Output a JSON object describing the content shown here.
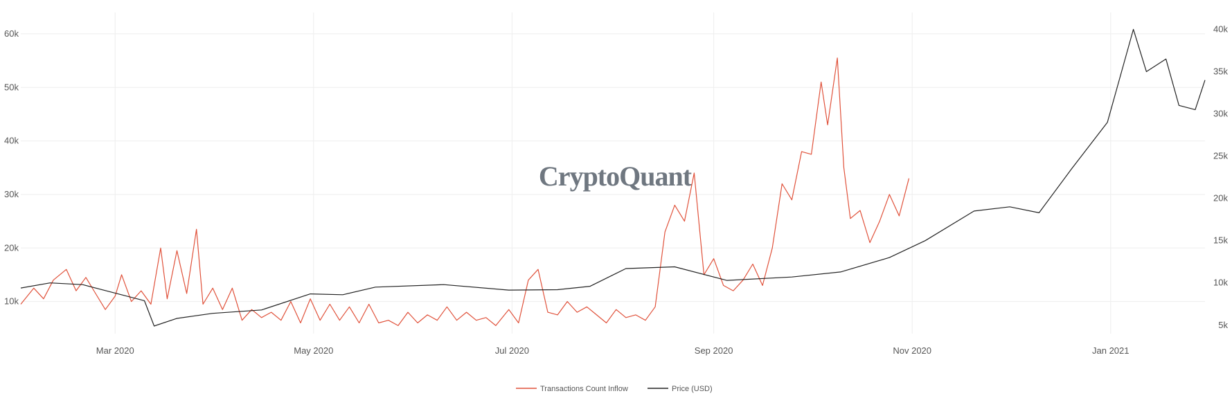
{
  "watermark": "CryptoQuant",
  "chart_data": {
    "type": "line",
    "x_ticks": [
      "Mar 2020",
      "May 2020",
      "Jul 2020",
      "Sep 2020",
      "Nov 2020",
      "Jan 2021"
    ],
    "x_tick_dates": [
      "2020-03-01",
      "2020-05-01",
      "2020-07-01",
      "2020-09-01",
      "2020-11-01",
      "2021-01-01"
    ],
    "x_range": [
      "2020-02-01",
      "2021-01-30"
    ],
    "y_left": {
      "ticks": [
        "10k",
        "20k",
        "30k",
        "40k",
        "50k",
        "60k"
      ],
      "tick_values": [
        10000,
        20000,
        30000,
        40000,
        50000,
        60000
      ],
      "range": [
        4000,
        64000
      ]
    },
    "y_right": {
      "ticks": [
        "5k",
        "10k",
        "15k",
        "20k",
        "25k",
        "30k",
        "35k",
        "40k"
      ],
      "tick_values": [
        5000,
        10000,
        15000,
        20000,
        25000,
        30000,
        35000,
        40000
      ],
      "range": [
        4000,
        42000
      ]
    },
    "grid": true,
    "legend_position": "bottom-center",
    "series": [
      {
        "name": "Transactions Count Inflow",
        "axis": "left",
        "color": "#e0513a",
        "points": [
          [
            "2020-02-01",
            9500
          ],
          [
            "2020-02-05",
            12500
          ],
          [
            "2020-02-08",
            10500
          ],
          [
            "2020-02-11",
            14000
          ],
          [
            "2020-02-15",
            16000
          ],
          [
            "2020-02-18",
            12000
          ],
          [
            "2020-02-21",
            14500
          ],
          [
            "2020-02-24",
            11500
          ],
          [
            "2020-02-27",
            8500
          ],
          [
            "2020-03-01",
            11000
          ],
          [
            "2020-03-03",
            15000
          ],
          [
            "2020-03-06",
            10000
          ],
          [
            "2020-03-09",
            12000
          ],
          [
            "2020-03-12",
            9500
          ],
          [
            "2020-03-15",
            20000
          ],
          [
            "2020-03-17",
            10500
          ],
          [
            "2020-03-20",
            19500
          ],
          [
            "2020-03-23",
            11500
          ],
          [
            "2020-03-26",
            23500
          ],
          [
            "2020-03-28",
            9500
          ],
          [
            "2020-03-31",
            12500
          ],
          [
            "2020-04-03",
            8500
          ],
          [
            "2020-04-06",
            12500
          ],
          [
            "2020-04-09",
            6500
          ],
          [
            "2020-04-12",
            8500
          ],
          [
            "2020-04-15",
            7000
          ],
          [
            "2020-04-18",
            8000
          ],
          [
            "2020-04-21",
            6500
          ],
          [
            "2020-04-24",
            10000
          ],
          [
            "2020-04-27",
            6000
          ],
          [
            "2020-04-30",
            10500
          ],
          [
            "2020-05-03",
            6500
          ],
          [
            "2020-05-06",
            9500
          ],
          [
            "2020-05-09",
            6500
          ],
          [
            "2020-05-12",
            9000
          ],
          [
            "2020-05-15",
            6000
          ],
          [
            "2020-05-18",
            9500
          ],
          [
            "2020-05-21",
            6000
          ],
          [
            "2020-05-24",
            6500
          ],
          [
            "2020-05-27",
            5500
          ],
          [
            "2020-05-30",
            8000
          ],
          [
            "2020-06-02",
            6000
          ],
          [
            "2020-06-05",
            7500
          ],
          [
            "2020-06-08",
            6500
          ],
          [
            "2020-06-11",
            9000
          ],
          [
            "2020-06-14",
            6500
          ],
          [
            "2020-06-17",
            8000
          ],
          [
            "2020-06-20",
            6500
          ],
          [
            "2020-06-23",
            7000
          ],
          [
            "2020-06-26",
            5500
          ],
          [
            "2020-06-30",
            8500
          ],
          [
            "2020-07-03",
            6000
          ],
          [
            "2020-07-06",
            14000
          ],
          [
            "2020-07-09",
            16000
          ],
          [
            "2020-07-12",
            8000
          ],
          [
            "2020-07-15",
            7500
          ],
          [
            "2020-07-18",
            10000
          ],
          [
            "2020-07-21",
            8000
          ],
          [
            "2020-07-24",
            9000
          ],
          [
            "2020-07-27",
            7500
          ],
          [
            "2020-07-30",
            6000
          ],
          [
            "2020-08-02",
            8500
          ],
          [
            "2020-08-05",
            7000
          ],
          [
            "2020-08-08",
            7500
          ],
          [
            "2020-08-11",
            6500
          ],
          [
            "2020-08-14",
            9000
          ],
          [
            "2020-08-17",
            23000
          ],
          [
            "2020-08-20",
            28000
          ],
          [
            "2020-08-23",
            25000
          ],
          [
            "2020-08-26",
            34000
          ],
          [
            "2020-08-29",
            15000
          ],
          [
            "2020-09-01",
            18000
          ],
          [
            "2020-09-04",
            13000
          ],
          [
            "2020-09-07",
            12000
          ],
          [
            "2020-09-10",
            14000
          ],
          [
            "2020-09-13",
            17000
          ],
          [
            "2020-09-16",
            13000
          ],
          [
            "2020-09-19",
            20000
          ],
          [
            "2020-09-22",
            32000
          ],
          [
            "2020-09-25",
            29000
          ],
          [
            "2020-09-28",
            38000
          ],
          [
            "2020-10-01",
            37500
          ],
          [
            "2020-10-04",
            51000
          ],
          [
            "2020-10-06",
            43000
          ],
          [
            "2020-10-09",
            55500
          ],
          [
            "2020-10-11",
            35000
          ],
          [
            "2020-10-13",
            25500
          ],
          [
            "2020-10-16",
            27000
          ],
          [
            "2020-10-19",
            21000
          ],
          [
            "2020-10-22",
            25000
          ],
          [
            "2020-10-25",
            30000
          ],
          [
            "2020-10-28",
            26000
          ],
          [
            "2020-10-31",
            33000
          ]
        ]
      },
      {
        "name": "Price (USD)",
        "axis": "right",
        "color": "#222222",
        "points": [
          [
            "2020-02-01",
            9400
          ],
          [
            "2020-02-10",
            10000
          ],
          [
            "2020-02-20",
            9800
          ],
          [
            "2020-03-01",
            8800
          ],
          [
            "2020-03-10",
            7900
          ],
          [
            "2020-03-13",
            4900
          ],
          [
            "2020-03-20",
            5800
          ],
          [
            "2020-03-31",
            6400
          ],
          [
            "2020-04-15",
            6800
          ],
          [
            "2020-04-30",
            8700
          ],
          [
            "2020-05-10",
            8600
          ],
          [
            "2020-05-20",
            9500
          ],
          [
            "2020-06-10",
            9800
          ],
          [
            "2020-06-30",
            9150
          ],
          [
            "2020-07-15",
            9200
          ],
          [
            "2020-07-25",
            9600
          ],
          [
            "2020-08-05",
            11700
          ],
          [
            "2020-08-20",
            11900
          ],
          [
            "2020-09-05",
            10300
          ],
          [
            "2020-09-25",
            10700
          ],
          [
            "2020-10-10",
            11300
          ],
          [
            "2020-10-25",
            13000
          ],
          [
            "2020-11-05",
            15000
          ],
          [
            "2020-11-20",
            18500
          ],
          [
            "2020-12-01",
            19000
          ],
          [
            "2020-12-10",
            18300
          ],
          [
            "2020-12-20",
            23500
          ],
          [
            "2020-12-31",
            29000
          ],
          [
            "2021-01-08",
            40000
          ],
          [
            "2021-01-12",
            35000
          ],
          [
            "2021-01-18",
            36500
          ],
          [
            "2021-01-22",
            31000
          ],
          [
            "2021-01-27",
            30500
          ],
          [
            "2021-01-30",
            34000
          ]
        ]
      }
    ]
  }
}
